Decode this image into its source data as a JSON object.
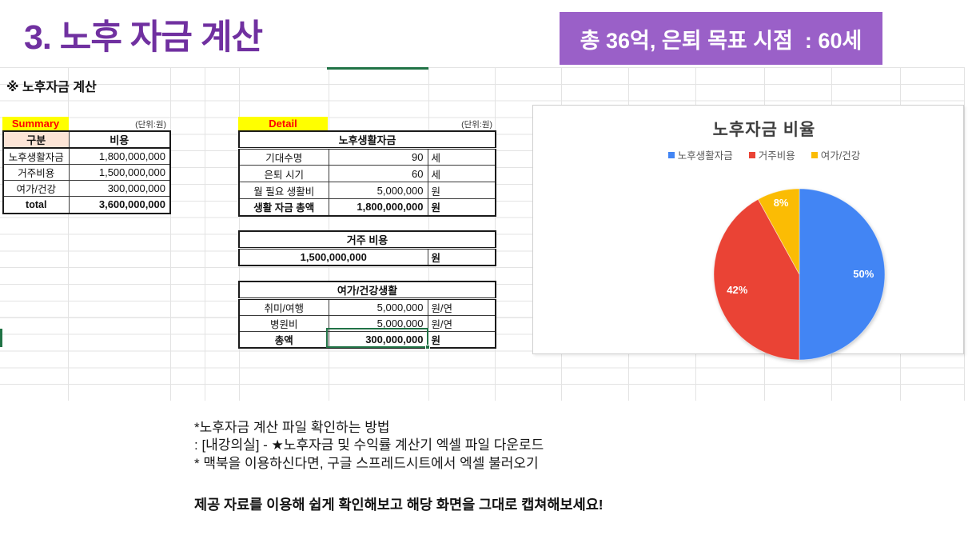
{
  "page": {
    "title": "3. 노후 자금 계산",
    "banner": "총 36억, 은퇴 목표 시점  : 60세",
    "section_heading": "※ 노후자금 계산"
  },
  "summary_table": {
    "label": "Summary",
    "unit_note": "(단위:원)",
    "headers": [
      "구분",
      "비용"
    ],
    "rows": [
      {
        "label": "노후생활자금",
        "value": "1,800,000,000"
      },
      {
        "label": "거주비용",
        "value": "1,500,000,000"
      },
      {
        "label": "여가/건강",
        "value": "300,000,000"
      },
      {
        "label": "total",
        "value": "3,600,000,000"
      }
    ]
  },
  "detail_table": {
    "label": "Detail",
    "unit_note": "(단위:원)",
    "sections": [
      {
        "title": "노후생활자금",
        "rows": [
          {
            "label": "기대수명",
            "value": "90",
            "unit": "세"
          },
          {
            "label": "은퇴 시기",
            "value": "60",
            "unit": "세"
          },
          {
            "label": "월 필요 생활비",
            "value": "5,000,000",
            "unit": "원"
          },
          {
            "label": "생활 자금 총액",
            "value": "1,800,000,000",
            "unit": "원"
          }
        ]
      },
      {
        "title": "거주 비용",
        "rows": [
          {
            "label": "",
            "value": "1,500,000,000",
            "unit": "원"
          }
        ]
      },
      {
        "title": "여가/건강생활",
        "rows": [
          {
            "label": "취미/여행",
            "value": "5,000,000",
            "unit": "원/연"
          },
          {
            "label": "병원비",
            "value": "5,000,000",
            "unit": "원/연"
          },
          {
            "label": "총액",
            "value": "300,000,000",
            "unit": "원"
          }
        ]
      }
    ]
  },
  "chart_data": {
    "type": "pie",
    "title": "노후자금 비율",
    "legend_position": "top",
    "categories": [
      "노후생활자금",
      "거주비용",
      "여가/건강"
    ],
    "values_percent": [
      50,
      42,
      8
    ],
    "series": [
      {
        "name": "노후생활자금",
        "percent": 50,
        "color": "#4285F4"
      },
      {
        "name": "거주비용",
        "percent": 42,
        "color": "#EA4335"
      },
      {
        "name": "여가/건강",
        "percent": 8,
        "color": "#FBBC04"
      }
    ]
  },
  "notes": {
    "line1": "*노후자금 계산 파일 확인하는 방법",
    "line2": ": [내강의실] - ★노후자금 및 수익률 계산기 엑셀 파일 다운로드",
    "line3": "* 맥북을 이용하신다면, 구글 스프레드시트에서 엑셀 불러오기",
    "line4": "제공 자료를 이용해 쉽게 확인해보고 해당 화면을 그대로 캡쳐해보세요!"
  },
  "colors": {
    "title_purple": "#7030A0",
    "banner_bg": "#9A60C8",
    "highlight_yellow": "#FFFF00",
    "label_red": "#FF0000",
    "header_peach": "#FCE4D6",
    "excel_green": "#217346",
    "pie_blue": "#4285F4",
    "pie_red": "#EA4335",
    "pie_yellow": "#FBBC04"
  }
}
